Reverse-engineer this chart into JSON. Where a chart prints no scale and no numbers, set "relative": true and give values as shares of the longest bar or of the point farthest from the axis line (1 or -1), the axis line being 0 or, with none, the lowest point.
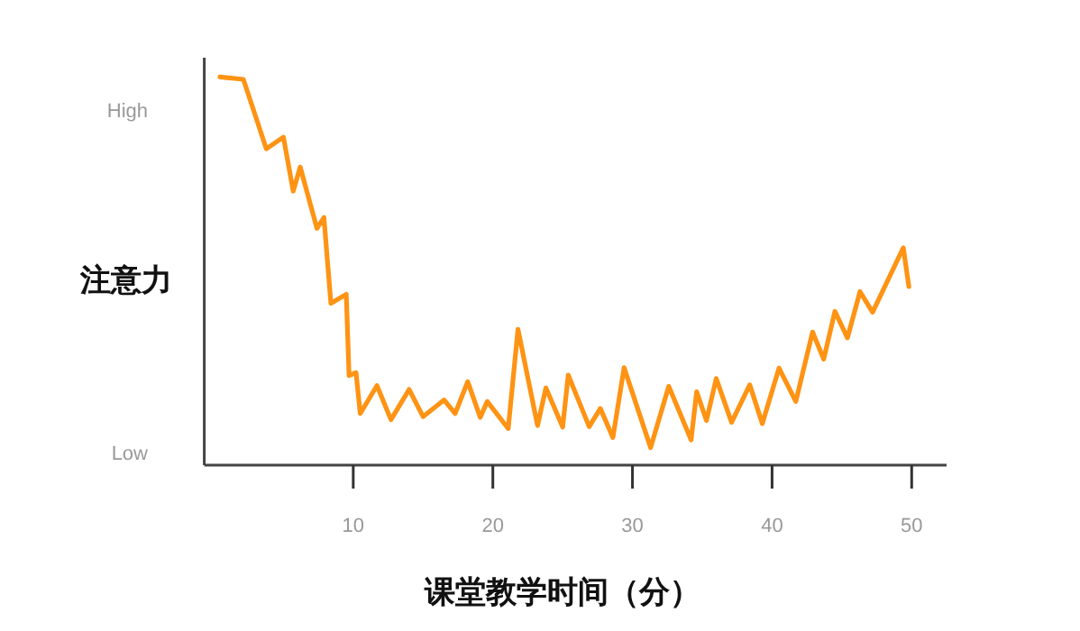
{
  "chart_data": {
    "type": "line",
    "xlabel": "课堂教学时间（分）",
    "ylabel": "注意力",
    "relative": true,
    "annotations": [
      "High",
      "Low"
    ],
    "x": [
      0.45,
      2.13,
      3.77,
      5.0,
      5.7,
      6.2,
      7.4,
      7.9,
      8.4,
      9.5,
      9.7,
      10.2,
      10.5,
      11.7,
      12.7,
      14.0,
      15.0,
      16.5,
      17.3,
      18.2,
      19.1,
      19.6,
      21.1,
      21.8,
      23.2,
      23.8,
      25.0,
      25.4,
      26.9,
      27.7,
      28.6,
      29.4,
      31.3,
      32.6,
      34.2,
      34.6,
      35.3,
      36.0,
      37.1,
      38.4,
      39.3,
      40.5,
      41.7,
      42.9,
      43.7,
      44.5,
      45.4,
      46.3,
      47.2,
      49.4,
      49.8
    ],
    "series": [
      {
        "color": "#ff9314",
        "values": [
          1.0,
          0.994,
          0.815,
          0.845,
          0.706,
          0.768,
          0.61,
          0.638,
          0.417,
          0.44,
          0.231,
          0.238,
          0.133,
          0.205,
          0.117,
          0.195,
          0.125,
          0.168,
          0.133,
          0.215,
          0.123,
          0.164,
          0.094,
          0.35,
          0.102,
          0.199,
          0.098,
          0.232,
          0.099,
          0.146,
          0.071,
          0.251,
          0.045,
          0.203,
          0.065,
          0.189,
          0.115,
          0.223,
          0.11,
          0.207,
          0.107,
          0.25,
          0.164,
          0.343,
          0.273,
          0.396,
          0.328,
          0.447,
          0.394,
          0.56,
          0.46
        ]
      }
    ],
    "xlim": [
      -0.67,
      52.5
    ],
    "xticks": [
      10,
      20,
      30,
      40,
      50
    ],
    "grid": false,
    "marker": "none",
    "line_style": "solid"
  }
}
